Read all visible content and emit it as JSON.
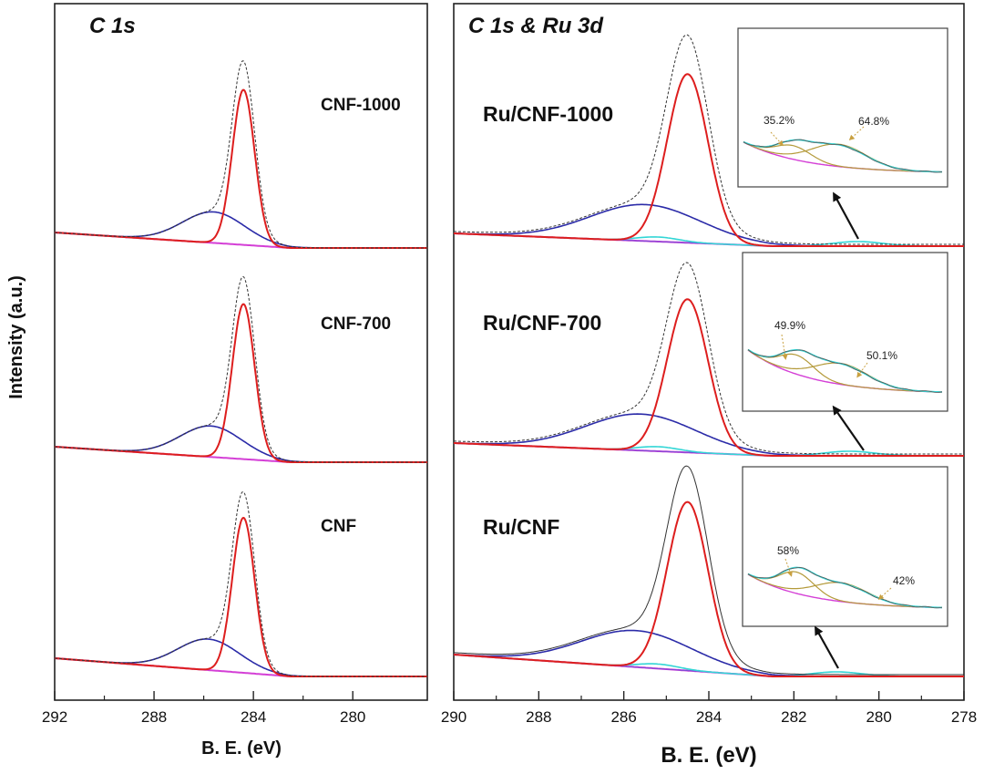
{
  "chart_data": {
    "type": "line",
    "y_axis_label": "Intensity (a.u.)",
    "colors": {
      "envelope": "#333333",
      "c_sp2": "#dd1e1e",
      "c_sp3": "#2b2ba8",
      "background": "#d43fd6",
      "ru": "#33d6d6",
      "ru_component": "#b49a3a"
    },
    "panels": [
      {
        "id": "left",
        "title": "C 1s",
        "xlabel": "B. E. (eV)",
        "xlim": [
          292,
          277
        ],
        "xticks": [
          292,
          288,
          284,
          280
        ],
        "series": [
          {
            "label": "CNF-1000",
            "peak_eV": 284.4,
            "shoulder_eV": 285.6
          },
          {
            "label": "CNF-700",
            "peak_eV": 284.4,
            "shoulder_eV": 285.7
          },
          {
            "label": "CNF",
            "peak_eV": 284.4,
            "shoulder_eV": 285.8
          }
        ]
      },
      {
        "id": "right",
        "title": "C 1s & Ru 3d",
        "xlabel": "B. E. (eV)",
        "xlim": [
          290,
          278
        ],
        "xticks": [
          290,
          288,
          286,
          284,
          282,
          280,
          278
        ],
        "series": [
          {
            "label": "Ru/CNF-1000",
            "peak_eV": 284.5,
            "shoulder_eV": 285.5,
            "ru_eV": 280.5,
            "inset": {
              "percent_low": "35.2%",
              "percent_high": "64.8%"
            }
          },
          {
            "label": "Ru/CNF-700",
            "peak_eV": 284.5,
            "shoulder_eV": 285.6,
            "ru_eV": 280.7,
            "inset": {
              "percent_low": "49.9%",
              "percent_high": "50.1%"
            }
          },
          {
            "label": "Ru/CNF",
            "peak_eV": 284.5,
            "shoulder_eV": 285.7,
            "ru_eV": 281.0,
            "inset": {
              "percent_low": "58%",
              "percent_high": "42%"
            }
          }
        ]
      }
    ]
  }
}
